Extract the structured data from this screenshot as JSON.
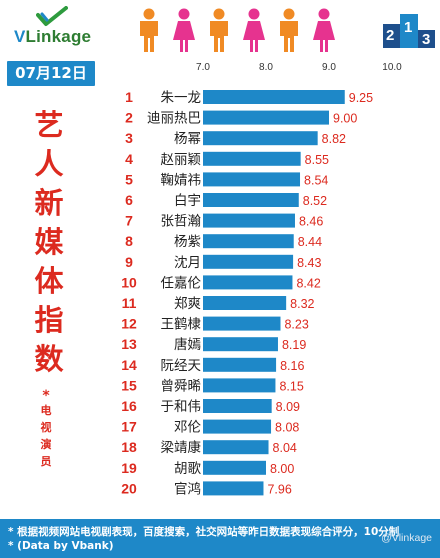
{
  "brand": {
    "name_prefix": "V",
    "name_rest": "Linkage"
  },
  "date": "07月12日",
  "title_chars": [
    "艺",
    "人",
    "新",
    "媒",
    "体",
    "指",
    "数"
  ],
  "subtitle_star": "*",
  "subtitle_chars": [
    "电",
    "视",
    "演",
    "员"
  ],
  "podium": {
    "first": "1",
    "second": "2",
    "third": "3"
  },
  "footer": {
    "line1": "* 根据视频网站电视剧表现，百度搜索，社交网站等昨日数据表现综合评分，10分制",
    "line2": "* (Data by Vbank)"
  },
  "watermark": "@Vlinkage",
  "colors": {
    "accent_blue": "#1e88c8",
    "accent_red": "#dc2a1f",
    "person_orange": "#f08a24",
    "person_pink": "#e6338f"
  },
  "chart_data": {
    "type": "bar",
    "orientation": "horizontal",
    "xlim": [
      6.0,
      10.0
    ],
    "x_ticks": [
      "7.0",
      "8.0",
      "9.0",
      "10.0"
    ],
    "x_tick_values": [
      7.0,
      8.0,
      9.0,
      10.0
    ],
    "grid": false,
    "bar_color": "#1e88c8",
    "ranks": [
      "1",
      "2",
      "3",
      "4",
      "5",
      "6",
      "7",
      "8",
      "9",
      "10",
      "11",
      "12",
      "13",
      "14",
      "15",
      "16",
      "17",
      "18",
      "19",
      "20"
    ],
    "categories": [
      "朱一龙",
      "迪丽热巴",
      "杨幂",
      "赵丽颖",
      "鞠婧祎",
      "白宇",
      "张哲瀚",
      "杨紫",
      "沈月",
      "任嘉伦",
      "郑爽",
      "王鹤棣",
      "唐嫣",
      "阮经天",
      "曾舜晞",
      "于和伟",
      "邓伦",
      "梁靖康",
      "胡歌",
      "官鸿"
    ],
    "values": [
      9.25,
      9.0,
      8.82,
      8.55,
      8.54,
      8.52,
      8.46,
      8.44,
      8.43,
      8.42,
      8.32,
      8.23,
      8.19,
      8.16,
      8.15,
      8.09,
      8.08,
      8.04,
      8.0,
      7.96
    ],
    "value_labels": [
      "9.25",
      "9.00",
      "8.82",
      "8.55",
      "8.54",
      "8.52",
      "8.46",
      "8.44",
      "8.43",
      "8.42",
      "8.32",
      "8.23",
      "8.19",
      "8.16",
      "8.15",
      "8.09",
      "8.08",
      "8.04",
      "8.00",
      "7.96"
    ]
  }
}
